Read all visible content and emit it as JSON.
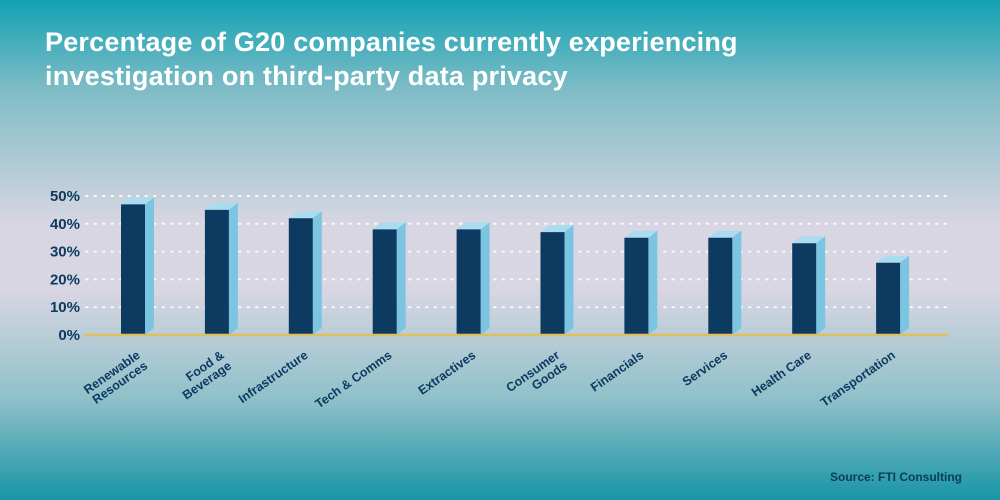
{
  "header": {
    "title": "Percentage of G20 companies currently experiencing\ninvestigation on third-party data privacy"
  },
  "footer": {
    "source": "Source: FTI Consulting"
  },
  "chart_data": {
    "type": "bar",
    "title": "Percentage of G20 companies currently experiencing investigation on third-party data privacy",
    "categories": [
      "Renewable\nResources",
      "Food &\nBeverage",
      "Infrastructure",
      "Tech & Comms",
      "Extractives",
      "Consumer\nGoods",
      "Financials",
      "Services",
      "Health Care",
      "Transportation"
    ],
    "values": [
      47,
      45,
      42,
      38,
      38,
      37,
      35,
      35,
      33,
      26
    ],
    "xlabel": "",
    "ylabel": "",
    "ylim": [
      0,
      50
    ],
    "yticks": [
      0,
      10,
      20,
      30,
      40,
      50
    ],
    "ytick_labels": [
      "0%",
      "10%",
      "20%",
      "30%",
      "40%",
      "50%"
    ],
    "grid": "dotted-horizontal-white",
    "legend": "none",
    "bar_style": "3d-extruded",
    "source": "Source: FTI Consulting",
    "colors": {
      "bar_front": "#0d3a60",
      "bar_side": "#7cc5e2",
      "bar_top": "#a9dcef",
      "baseline": "#dfc05c",
      "axis_text": "#0d3a60",
      "gridline": "#ffffff",
      "title_text": "#ffffff",
      "bg_top": "#12a2b3",
      "bg_mid": "#d8d6e2",
      "bg_bottom": "#1795a6"
    }
  }
}
